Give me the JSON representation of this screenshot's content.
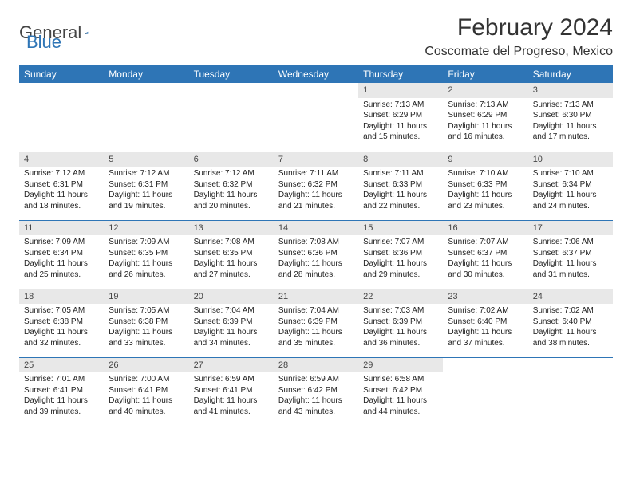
{
  "brand": {
    "part1": "General",
    "part2": "Blue"
  },
  "title": "February 2024",
  "location": "Coscomate del Progreso, Mexico",
  "colors": {
    "header_bg": "#2e75b6",
    "header_text": "#ffffff",
    "daynum_bg": "#e8e8e8",
    "row_border": "#2e75b6",
    "brand_blue": "#2e75b6",
    "brand_gray": "#444444"
  },
  "weekdays": [
    "Sunday",
    "Monday",
    "Tuesday",
    "Wednesday",
    "Thursday",
    "Friday",
    "Saturday"
  ],
  "weeks": [
    [
      null,
      null,
      null,
      null,
      {
        "n": "1",
        "sr": "7:13 AM",
        "ss": "6:29 PM",
        "dl": "11 hours and 15 minutes."
      },
      {
        "n": "2",
        "sr": "7:13 AM",
        "ss": "6:29 PM",
        "dl": "11 hours and 16 minutes."
      },
      {
        "n": "3",
        "sr": "7:13 AM",
        "ss": "6:30 PM",
        "dl": "11 hours and 17 minutes."
      }
    ],
    [
      {
        "n": "4",
        "sr": "7:12 AM",
        "ss": "6:31 PM",
        "dl": "11 hours and 18 minutes."
      },
      {
        "n": "5",
        "sr": "7:12 AM",
        "ss": "6:31 PM",
        "dl": "11 hours and 19 minutes."
      },
      {
        "n": "6",
        "sr": "7:12 AM",
        "ss": "6:32 PM",
        "dl": "11 hours and 20 minutes."
      },
      {
        "n": "7",
        "sr": "7:11 AM",
        "ss": "6:32 PM",
        "dl": "11 hours and 21 minutes."
      },
      {
        "n": "8",
        "sr": "7:11 AM",
        "ss": "6:33 PM",
        "dl": "11 hours and 22 minutes."
      },
      {
        "n": "9",
        "sr": "7:10 AM",
        "ss": "6:33 PM",
        "dl": "11 hours and 23 minutes."
      },
      {
        "n": "10",
        "sr": "7:10 AM",
        "ss": "6:34 PM",
        "dl": "11 hours and 24 minutes."
      }
    ],
    [
      {
        "n": "11",
        "sr": "7:09 AM",
        "ss": "6:34 PM",
        "dl": "11 hours and 25 minutes."
      },
      {
        "n": "12",
        "sr": "7:09 AM",
        "ss": "6:35 PM",
        "dl": "11 hours and 26 minutes."
      },
      {
        "n": "13",
        "sr": "7:08 AM",
        "ss": "6:35 PM",
        "dl": "11 hours and 27 minutes."
      },
      {
        "n": "14",
        "sr": "7:08 AM",
        "ss": "6:36 PM",
        "dl": "11 hours and 28 minutes."
      },
      {
        "n": "15",
        "sr": "7:07 AM",
        "ss": "6:36 PM",
        "dl": "11 hours and 29 minutes."
      },
      {
        "n": "16",
        "sr": "7:07 AM",
        "ss": "6:37 PM",
        "dl": "11 hours and 30 minutes."
      },
      {
        "n": "17",
        "sr": "7:06 AM",
        "ss": "6:37 PM",
        "dl": "11 hours and 31 minutes."
      }
    ],
    [
      {
        "n": "18",
        "sr": "7:05 AM",
        "ss": "6:38 PM",
        "dl": "11 hours and 32 minutes."
      },
      {
        "n": "19",
        "sr": "7:05 AM",
        "ss": "6:38 PM",
        "dl": "11 hours and 33 minutes."
      },
      {
        "n": "20",
        "sr": "7:04 AM",
        "ss": "6:39 PM",
        "dl": "11 hours and 34 minutes."
      },
      {
        "n": "21",
        "sr": "7:04 AM",
        "ss": "6:39 PM",
        "dl": "11 hours and 35 minutes."
      },
      {
        "n": "22",
        "sr": "7:03 AM",
        "ss": "6:39 PM",
        "dl": "11 hours and 36 minutes."
      },
      {
        "n": "23",
        "sr": "7:02 AM",
        "ss": "6:40 PM",
        "dl": "11 hours and 37 minutes."
      },
      {
        "n": "24",
        "sr": "7:02 AM",
        "ss": "6:40 PM",
        "dl": "11 hours and 38 minutes."
      }
    ],
    [
      {
        "n": "25",
        "sr": "7:01 AM",
        "ss": "6:41 PM",
        "dl": "11 hours and 39 minutes."
      },
      {
        "n": "26",
        "sr": "7:00 AM",
        "ss": "6:41 PM",
        "dl": "11 hours and 40 minutes."
      },
      {
        "n": "27",
        "sr": "6:59 AM",
        "ss": "6:41 PM",
        "dl": "11 hours and 41 minutes."
      },
      {
        "n": "28",
        "sr": "6:59 AM",
        "ss": "6:42 PM",
        "dl": "11 hours and 43 minutes."
      },
      {
        "n": "29",
        "sr": "6:58 AM",
        "ss": "6:42 PM",
        "dl": "11 hours and 44 minutes."
      },
      null,
      null
    ]
  ],
  "labels": {
    "sunrise": "Sunrise: ",
    "sunset": "Sunset: ",
    "daylight": "Daylight: "
  }
}
